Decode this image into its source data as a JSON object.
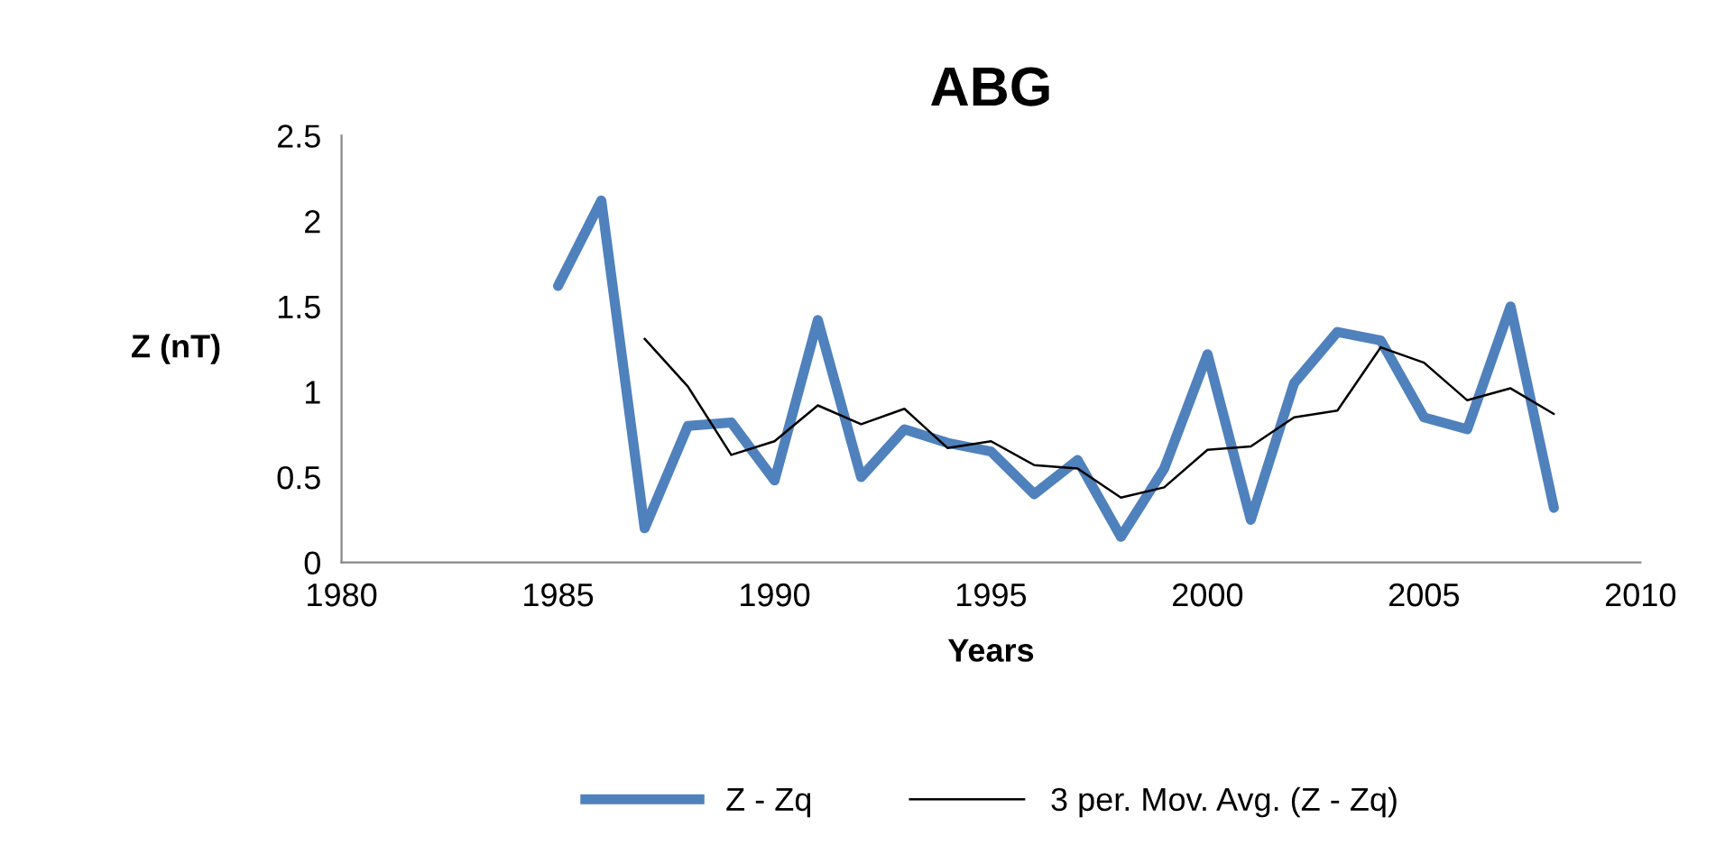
{
  "chart_data": {
    "type": "line",
    "title": "ABG",
    "xlabel": "Years",
    "ylabel": "Z (nT)",
    "xlim": [
      1980,
      2010
    ],
    "xticks": [
      1980,
      1985,
      1990,
      1995,
      2000,
      2005,
      2010
    ],
    "ylim": [
      0,
      2.5
    ],
    "yticks": [
      0,
      0.5,
      1,
      1.5,
      2,
      2.5
    ],
    "grid": false,
    "legend": "bottom",
    "series": [
      {
        "name": "Z - Zq",
        "color": "#4f81bd",
        "x": [
          1985,
          1986,
          1987,
          1988,
          1989,
          1990,
          1991,
          1992,
          1993,
          1994,
          1995,
          1996,
          1997,
          1998,
          1999,
          2000,
          2001,
          2002,
          2003,
          2004,
          2005,
          2006,
          2007,
          2008
        ],
        "values": [
          1.62,
          2.12,
          0.2,
          0.8,
          0.82,
          0.48,
          1.42,
          0.5,
          0.78,
          0.7,
          0.65,
          0.4,
          0.6,
          0.15,
          0.55,
          1.22,
          0.25,
          1.05,
          1.35,
          1.3,
          0.85,
          0.78,
          1.5,
          0.32
        ]
      },
      {
        "name": "3 per. Mov. Avg. (Z - Zq)",
        "color": "#000000",
        "x": [
          1987,
          1988,
          1989,
          1990,
          1991,
          1992,
          1993,
          1994,
          1995,
          1996,
          1997,
          1998,
          1999,
          2000,
          2001,
          2002,
          2003,
          2004,
          2005,
          2006,
          2007,
          2008
        ],
        "values": [
          1.31,
          1.03,
          0.63,
          0.71,
          0.92,
          0.81,
          0.9,
          0.67,
          0.71,
          0.57,
          0.55,
          0.38,
          0.44,
          0.66,
          0.68,
          0.85,
          0.89,
          1.26,
          1.17,
          0.95,
          1.02,
          0.87
        ]
      }
    ]
  }
}
